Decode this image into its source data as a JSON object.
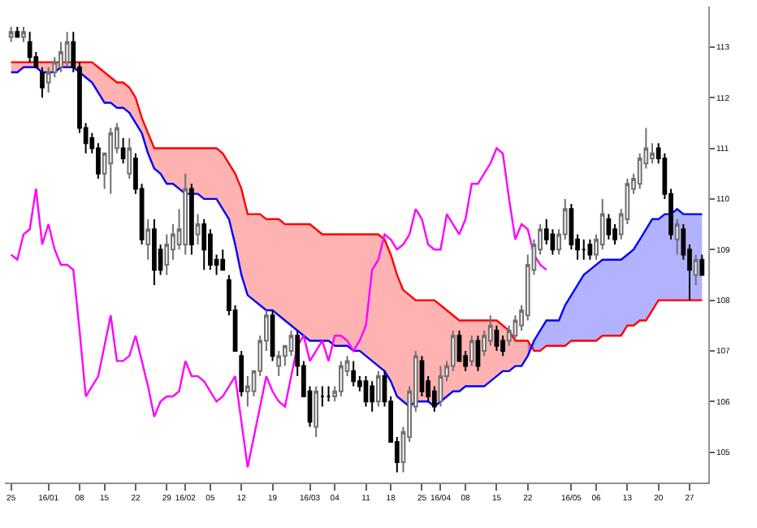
{
  "chart_data": {
    "type": "candlestick",
    "categories": [
      "25",
      null,
      null,
      null,
      null,
      null,
      "16/01",
      null,
      null,
      null,
      null,
      "08",
      null,
      null,
      null,
      "15",
      null,
      null,
      null,
      null,
      "22",
      null,
      null,
      null,
      null,
      "29",
      null,
      null,
      "16/02",
      null,
      null,
      null,
      "05",
      null,
      null,
      null,
      null,
      "12",
      null,
      null,
      null,
      null,
      "19",
      null,
      null,
      null,
      null,
      null,
      "16/03",
      null,
      null,
      null,
      "04",
      null,
      null,
      null,
      null,
      "11",
      null,
      null,
      null,
      "18",
      null,
      null,
      null,
      null,
      "25",
      null,
      null,
      "16/04",
      null,
      null,
      null,
      "08",
      null,
      null,
      null,
      null,
      "15",
      null,
      null,
      null,
      null,
      "22",
      null,
      null,
      null,
      null,
      null,
      null,
      "16/05",
      null,
      null,
      null,
      "06",
      null,
      null,
      null,
      null,
      "13",
      null,
      null,
      null,
      null,
      "20",
      null,
      null,
      null,
      null,
      "27",
      null,
      null
    ],
    "ohlc": [
      [
        113.2,
        113.4,
        113.1,
        113.3
      ],
      [
        113.3,
        113.4,
        113.2,
        113.2
      ],
      [
        113.2,
        113.4,
        113.1,
        113.3
      ],
      [
        113.1,
        113.3,
        112.7,
        112.8
      ],
      [
        112.8,
        112.9,
        112.6,
        112.6
      ],
      [
        112.5,
        112.6,
        112.0,
        112.2
      ],
      [
        112.3,
        112.6,
        112.1,
        112.5
      ],
      [
        112.5,
        112.8,
        112.4,
        112.7
      ],
      [
        112.6,
        113.1,
        112.5,
        112.9
      ],
      [
        112.7,
        113.3,
        112.6,
        113.1
      ],
      [
        113.1,
        113.3,
        112.5,
        112.6
      ],
      [
        112.6,
        112.7,
        111.3,
        111.4
      ],
      [
        111.4,
        111.5,
        110.9,
        111.1
      ],
      [
        111.2,
        111.3,
        110.9,
        111.0
      ],
      [
        111.0,
        111.1,
        110.4,
        110.5
      ],
      [
        110.5,
        110.9,
        110.2,
        110.9
      ],
      [
        110.7,
        111.4,
        110.1,
        111.3
      ],
      [
        111.0,
        111.5,
        110.9,
        111.4
      ],
      [
        111.0,
        111.2,
        110.7,
        110.8
      ],
      [
        110.5,
        111.2,
        110.4,
        111.0
      ],
      [
        110.8,
        110.9,
        110.1,
        110.2
      ],
      [
        110.2,
        110.3,
        109.1,
        109.2
      ],
      [
        109.1,
        109.6,
        108.8,
        109.4
      ],
      [
        109.4,
        109.6,
        108.3,
        108.6
      ],
      [
        109.0,
        109.1,
        108.5,
        108.6
      ],
      [
        108.7,
        109.3,
        108.5,
        109.1
      ],
      [
        109.0,
        109.5,
        108.8,
        109.3
      ],
      [
        109.1,
        109.8,
        109.0,
        109.4
      ],
      [
        109.1,
        110.5,
        108.9,
        110.2
      ],
      [
        110.2,
        110.3,
        108.9,
        109.1
      ],
      [
        109.3,
        109.7,
        109.1,
        109.5
      ],
      [
        109.5,
        109.6,
        108.6,
        109.0
      ],
      [
        109.3,
        109.4,
        108.6,
        108.7
      ],
      [
        108.8,
        108.9,
        108.5,
        108.7
      ],
      [
        108.8,
        109.0,
        108.6,
        108.6
      ],
      [
        108.4,
        108.5,
        107.7,
        107.8
      ],
      [
        107.8,
        107.9,
        107.0,
        107.0
      ],
      [
        106.9,
        107.0,
        106.1,
        106.2
      ],
      [
        106.2,
        106.5,
        105.9,
        106.3
      ],
      [
        106.2,
        106.6,
        106.1,
        106.6
      ],
      [
        106.6,
        107.3,
        106.5,
        107.2
      ],
      [
        107.2,
        107.8,
        107.0,
        107.7
      ],
      [
        107.7,
        107.8,
        106.8,
        106.9
      ],
      [
        106.7,
        107.0,
        106.5,
        106.9
      ],
      [
        106.9,
        107.1,
        106.7,
        107.1
      ],
      [
        107.0,
        107.4,
        106.9,
        107.3
      ],
      [
        107.3,
        107.4,
        106.5,
        106.7
      ],
      [
        106.7,
        106.8,
        106.1,
        106.1
      ],
      [
        106.2,
        106.3,
        105.5,
        105.6
      ],
      [
        105.5,
        106.3,
        105.3,
        106.2
      ],
      [
        106.1,
        106.3,
        105.9,
        106.1
      ],
      [
        106.1,
        106.3,
        106.0,
        106.1
      ],
      [
        106.1,
        106.3,
        106.0,
        106.2
      ],
      [
        106.2,
        106.8,
        106.1,
        106.7
      ],
      [
        106.6,
        106.9,
        106.5,
        106.8
      ],
      [
        106.6,
        106.8,
        106.3,
        106.4
      ],
      [
        106.4,
        106.5,
        106.2,
        106.3
      ],
      [
        106.4,
        106.5,
        105.9,
        106.0
      ],
      [
        106.3,
        106.4,
        105.8,
        106.0
      ],
      [
        106.0,
        106.6,
        105.9,
        106.5
      ],
      [
        106.5,
        106.6,
        105.9,
        106.0
      ],
      [
        106.0,
        106.1,
        105.2,
        105.2
      ],
      [
        105.2,
        105.3,
        104.6,
        104.8
      ],
      [
        104.8,
        105.5,
        104.6,
        105.4
      ],
      [
        105.3,
        106.3,
        105.2,
        106.2
      ],
      [
        105.9,
        107.0,
        105.8,
        106.9
      ],
      [
        106.8,
        106.9,
        106.1,
        106.2
      ],
      [
        106.4,
        106.5,
        106.0,
        106.1
      ],
      [
        106.2,
        106.3,
        105.8,
        105.9
      ],
      [
        106.0,
        106.7,
        105.9,
        106.5
      ],
      [
        106.5,
        106.8,
        106.4,
        106.7
      ],
      [
        106.7,
        107.4,
        106.6,
        107.3
      ],
      [
        107.3,
        107.4,
        106.8,
        106.8
      ],
      [
        106.9,
        107.0,
        106.6,
        106.7
      ],
      [
        106.8,
        107.3,
        106.7,
        107.2
      ],
      [
        107.2,
        107.3,
        106.6,
        106.7
      ],
      [
        107.0,
        107.4,
        106.9,
        107.3
      ],
      [
        107.2,
        107.7,
        107.1,
        107.5
      ],
      [
        107.4,
        107.5,
        107.0,
        107.1
      ],
      [
        107.2,
        107.3,
        106.9,
        107.0
      ],
      [
        107.2,
        107.5,
        107.1,
        107.4
      ],
      [
        107.3,
        107.7,
        107.2,
        107.6
      ],
      [
        107.5,
        107.9,
        107.4,
        107.8
      ],
      [
        107.7,
        108.9,
        107.6,
        108.7
      ],
      [
        108.6,
        109.2,
        108.5,
        109.1
      ],
      [
        109.0,
        109.5,
        108.9,
        109.4
      ],
      [
        109.4,
        109.6,
        109.1,
        109.2
      ],
      [
        109.3,
        109.4,
        108.9,
        109.0
      ],
      [
        109.0,
        109.4,
        108.9,
        109.3
      ],
      [
        109.3,
        110.0,
        109.2,
        109.8
      ],
      [
        109.8,
        109.9,
        109.0,
        109.1
      ],
      [
        109.2,
        109.3,
        108.8,
        109.0
      ],
      [
        109.0,
        109.2,
        108.8,
        109.0
      ],
      [
        109.1,
        109.2,
        108.8,
        108.9
      ],
      [
        108.9,
        109.3,
        108.8,
        109.2
      ],
      [
        109.1,
        110.0,
        109.0,
        109.7
      ],
      [
        109.6,
        109.7,
        109.2,
        109.3
      ],
      [
        109.4,
        109.5,
        109.1,
        109.2
      ],
      [
        109.3,
        109.8,
        109.2,
        109.7
      ],
      [
        109.6,
        110.4,
        109.5,
        110.3
      ],
      [
        110.2,
        110.5,
        110.1,
        110.4
      ],
      [
        110.3,
        110.9,
        110.2,
        110.8
      ],
      [
        110.7,
        111.4,
        110.6,
        111.0
      ],
      [
        110.8,
        111.1,
        110.7,
        110.9
      ],
      [
        111.0,
        111.1,
        110.7,
        110.8
      ],
      [
        110.8,
        110.9,
        110.0,
        110.1
      ],
      [
        110.1,
        110.2,
        109.2,
        109.3
      ],
      [
        109.2,
        109.6,
        108.9,
        109.5
      ],
      [
        109.4,
        109.5,
        108.8,
        108.9
      ],
      [
        109.0,
        109.1,
        108.0,
        108.6
      ],
      [
        108.5,
        108.9,
        108.3,
        108.8
      ],
      [
        108.8,
        108.9,
        108.5,
        108.5
      ]
    ],
    "series": [
      {
        "type": "line",
        "color": "#ff0000",
        "upper": [
          112.7,
          112.7,
          112.7,
          112.7,
          112.7,
          112.7,
          112.7,
          112.7,
          112.7,
          112.7,
          112.7,
          112.7,
          112.7,
          112.7,
          112.6,
          112.5,
          112.4,
          112.3,
          112.3,
          112.2,
          112.0,
          111.6,
          111.3,
          111.0,
          111.0,
          111.0,
          111.0,
          111.0,
          111.0,
          111.0,
          111.0,
          111.0,
          111.0,
          111.0,
          110.9,
          110.7,
          110.5,
          110.2,
          109.7,
          109.7,
          109.7,
          109.6,
          109.6,
          109.6,
          109.5,
          109.5,
          109.5,
          109.5,
          109.5,
          109.4,
          109.3,
          109.3,
          109.3,
          109.3,
          109.3,
          109.3,
          109.3,
          109.3,
          109.3,
          109.3,
          109.2,
          108.9,
          108.5,
          108.2,
          108.1,
          108.0,
          108.0,
          108.0,
          108.0,
          107.9,
          107.8,
          107.7,
          107.6,
          107.6,
          107.6,
          107.6,
          107.6,
          107.6,
          107.6,
          107.5,
          107.4,
          107.2,
          107.2,
          107.2,
          107.0,
          null,
          null,
          null,
          null,
          null,
          null,
          null,
          null,
          null,
          null,
          null,
          null,
          null,
          null,
          null,
          null,
          null,
          null,
          null,
          null,
          null,
          null,
          null,
          null,
          null,
          null,
          null
        ],
        "lower": [
          112.5,
          112.5,
          112.6,
          112.6,
          112.6,
          112.5,
          112.5,
          112.5,
          112.6,
          112.6,
          112.6,
          112.5,
          112.4,
          112.3,
          112.1,
          111.9,
          111.9,
          111.8,
          111.8,
          111.7,
          111.5,
          111.3,
          110.9,
          110.6,
          110.5,
          110.3,
          110.3,
          110.2,
          110.1,
          110.1,
          110.1,
          110.0,
          110.0,
          110.0,
          109.8,
          109.6,
          109.1,
          108.5,
          108.1,
          108.0,
          107.9,
          107.8,
          107.8,
          107.7,
          107.6,
          107.5,
          107.4,
          107.3,
          107.2,
          107.2,
          107.2,
          107.2,
          107.1,
          107.1,
          107.1,
          107.0,
          107.0,
          106.9,
          106.8,
          106.7,
          106.6,
          106.4,
          106.1,
          106.0,
          105.9,
          106.0,
          106.0,
          106.0,
          105.9,
          106.0,
          106.1,
          106.2,
          106.2,
          106.3,
          106.3,
          106.3,
          106.3,
          106.4,
          106.5,
          106.6,
          106.6,
          106.7,
          106.7,
          106.9,
          107.2,
          null,
          null,
          null,
          null,
          null,
          null,
          null,
          null,
          null,
          null,
          null,
          null,
          null,
          null,
          null,
          null,
          null,
          null,
          null,
          null,
          null,
          null,
          null,
          null,
          null,
          null,
          null
        ],
        "values": [
          112.7,
          112.7,
          112.7,
          112.7,
          112.7,
          112.7,
          112.7,
          112.7,
          112.7,
          112.7,
          112.7,
          112.7,
          112.7,
          112.7,
          112.6,
          112.5,
          112.4,
          112.3,
          112.3,
          112.2,
          112.0,
          111.6,
          111.3,
          111.0,
          111.0,
          111.0,
          111.0,
          111.0,
          111.0,
          111.0,
          111.0,
          111.0,
          111.0,
          111.0,
          110.9,
          110.7,
          110.5,
          110.2,
          109.7,
          109.7,
          109.7,
          109.6,
          109.6,
          109.6,
          109.5,
          109.5,
          109.5,
          109.5,
          109.5,
          109.4,
          109.3,
          109.3,
          109.3,
          109.3,
          109.3,
          109.3,
          109.3,
          109.3,
          109.3,
          109.3,
          109.2,
          108.9,
          108.5,
          108.2,
          108.1,
          108.0,
          108.0,
          108.0,
          108.0,
          107.9,
          107.8,
          107.7,
          107.6,
          107.6,
          107.6,
          107.6,
          107.6,
          107.6,
          107.6,
          107.5,
          107.4,
          107.2,
          107.2,
          107.2,
          107.0,
          107.0,
          107.1,
          107.1,
          107.1,
          107.1,
          107.2,
          107.2,
          107.2,
          107.2,
          107.2,
          107.3,
          107.3,
          107.3,
          107.3,
          107.5,
          107.5,
          107.6,
          107.6,
          107.8,
          108.0,
          108.0,
          108.0,
          108.0,
          108.0,
          108.0,
          108.0,
          108.0
        ]
      },
      {
        "type": "line",
        "color": "#0000ff",
        "upper": [
          null,
          null,
          null,
          null,
          null,
          null,
          null,
          null,
          null,
          null,
          null,
          null,
          null,
          null,
          null,
          null,
          null,
          null,
          null,
          null,
          null,
          null,
          null,
          null,
          null,
          null,
          null,
          null,
          null,
          null,
          null,
          null,
          null,
          null,
          null,
          null,
          null,
          null,
          null,
          null,
          null,
          null,
          null,
          null,
          null,
          null,
          null,
          null,
          null,
          null,
          null,
          null,
          null,
          null,
          null,
          null,
          null,
          null,
          null,
          null,
          null,
          null,
          null,
          null,
          null,
          null,
          null,
          null,
          null,
          null,
          null,
          null,
          null,
          null,
          null,
          null,
          null,
          null,
          null,
          null,
          null,
          null,
          null,
          106.9,
          107.2,
          107.4,
          107.6,
          107.6,
          107.6,
          107.9,
          108.1,
          108.3,
          108.5,
          108.6,
          108.7,
          108.8,
          108.8,
          108.8,
          108.8,
          108.9,
          109.0,
          109.2,
          109.4,
          109.6,
          109.6,
          109.7,
          109.7,
          109.8,
          109.7,
          109.7,
          109.7,
          109.7
        ],
        "lower": [
          null,
          null,
          null,
          null,
          null,
          null,
          null,
          null,
          null,
          null,
          null,
          null,
          null,
          null,
          null,
          null,
          null,
          null,
          null,
          null,
          null,
          null,
          null,
          null,
          null,
          null,
          null,
          null,
          null,
          null,
          null,
          null,
          null,
          null,
          null,
          null,
          null,
          null,
          null,
          null,
          null,
          null,
          null,
          null,
          null,
          null,
          null,
          null,
          null,
          null,
          null,
          null,
          null,
          null,
          null,
          null,
          null,
          null,
          null,
          null,
          null,
          null,
          null,
          null,
          null,
          null,
          null,
          null,
          null,
          null,
          null,
          null,
          null,
          null,
          null,
          null,
          null,
          null,
          null,
          null,
          null,
          null,
          null,
          107.2,
          107.0,
          107.0,
          107.1,
          107.1,
          107.1,
          107.1,
          107.2,
          107.2,
          107.2,
          107.2,
          107.2,
          107.3,
          107.3,
          107.3,
          107.3,
          107.5,
          107.5,
          107.6,
          107.6,
          107.8,
          108.0,
          108.0,
          108.0,
          108.0,
          108.0,
          108.0,
          108.0,
          108.0
        ],
        "values": [
          112.5,
          112.5,
          112.6,
          112.6,
          112.6,
          112.5,
          112.5,
          112.5,
          112.6,
          112.6,
          112.6,
          112.5,
          112.4,
          112.3,
          112.1,
          111.9,
          111.9,
          111.8,
          111.8,
          111.7,
          111.5,
          111.3,
          110.9,
          110.6,
          110.5,
          110.3,
          110.3,
          110.2,
          110.1,
          110.1,
          110.1,
          110.0,
          110.0,
          110.0,
          109.8,
          109.6,
          109.1,
          108.5,
          108.1,
          108.0,
          107.9,
          107.8,
          107.8,
          107.7,
          107.6,
          107.5,
          107.4,
          107.3,
          107.2,
          107.2,
          107.2,
          107.2,
          107.1,
          107.1,
          107.1,
          107.0,
          107.0,
          106.9,
          106.8,
          106.7,
          106.6,
          106.4,
          106.1,
          106.0,
          105.9,
          106.0,
          106.0,
          106.0,
          105.9,
          106.0,
          106.1,
          106.2,
          106.2,
          106.3,
          106.3,
          106.3,
          106.3,
          106.4,
          106.5,
          106.6,
          106.6,
          106.7,
          106.7,
          106.9,
          107.2,
          107.4,
          107.6,
          107.6,
          107.6,
          107.9,
          108.1,
          108.3,
          108.5,
          108.6,
          108.7,
          108.8,
          108.8,
          108.8,
          108.8,
          108.9,
          109.0,
          109.2,
          109.4,
          109.6,
          109.6,
          109.7,
          109.7,
          109.8,
          109.7,
          109.7,
          109.7,
          109.7
        ]
      },
      {
        "type": "line",
        "color": "#ff00ff",
        "values": [
          108.9,
          108.8,
          109.3,
          109.4,
          110.2,
          109.1,
          109.5,
          109.0,
          108.7,
          108.7,
          108.6,
          107.4,
          106.1,
          106.3,
          106.5,
          107.1,
          107.7,
          106.8,
          106.8,
          106.9,
          107.3,
          106.8,
          106.3,
          105.7,
          106.0,
          106.1,
          106.1,
          106.2,
          106.8,
          106.5,
          106.5,
          106.4,
          106.2,
          106.0,
          106.1,
          106.3,
          106.5,
          105.6,
          104.7,
          105.3,
          105.9,
          106.5,
          106.2,
          106.0,
          105.9,
          106.5,
          107.1,
          107.3,
          106.8,
          107.0,
          107.2,
          106.8,
          107.3,
          107.3,
          107.2,
          107.0,
          107.2,
          107.5,
          108.6,
          108.8,
          109.3,
          109.2,
          109.0,
          109.1,
          109.3,
          109.8,
          109.6,
          109.1,
          109.0,
          109.0,
          109.7,
          109.5,
          109.3,
          109.6,
          110.3,
          110.3,
          110.5,
          110.7,
          111.0,
          110.9,
          110.0,
          109.2,
          109.5,
          109.4,
          108.9,
          108.7,
          108.6,
          null,
          null,
          null,
          null,
          null,
          null,
          null,
          null,
          null,
          null,
          null,
          null,
          null,
          null,
          null,
          null,
          null,
          null,
          null,
          null,
          null,
          null,
          null,
          null,
          null
        ]
      }
    ],
    "ylim": [
      104.4,
      113.8
    ],
    "yticks": [
      105,
      106,
      107,
      108,
      109,
      110,
      111,
      112,
      113
    ]
  }
}
